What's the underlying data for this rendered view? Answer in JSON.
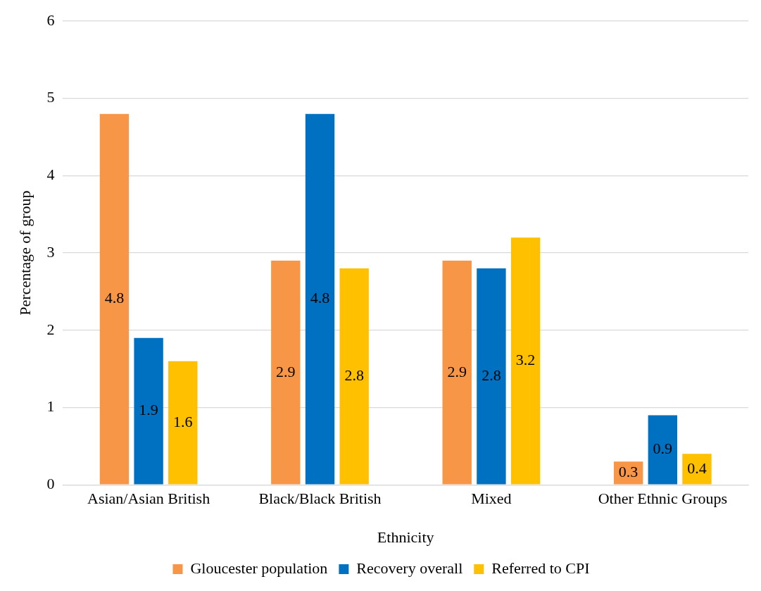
{
  "chart_data": {
    "type": "bar",
    "xlabel": "Ethnicity",
    "ylabel": "Percentage of group",
    "categories": [
      "Asian/Asian British",
      "Black/Black British",
      "Mixed",
      "Other Ethnic Groups"
    ],
    "series": [
      {
        "name": "Gloucester population",
        "color": "#f79646",
        "values": [
          4.8,
          2.9,
          2.9,
          0.3
        ]
      },
      {
        "name": "Recovery overall",
        "color": "#0070c0",
        "values": [
          1.9,
          4.8,
          2.8,
          0.9
        ]
      },
      {
        "name": "Referred to CPI",
        "color": "#ffc000",
        "values": [
          1.6,
          2.8,
          3.2,
          0.4
        ]
      }
    ],
    "ylim": [
      0,
      6
    ],
    "yticks": [
      0,
      1,
      2,
      3,
      4,
      5,
      6
    ],
    "grid": "y",
    "legend": "bottom",
    "data_labels": true
  }
}
